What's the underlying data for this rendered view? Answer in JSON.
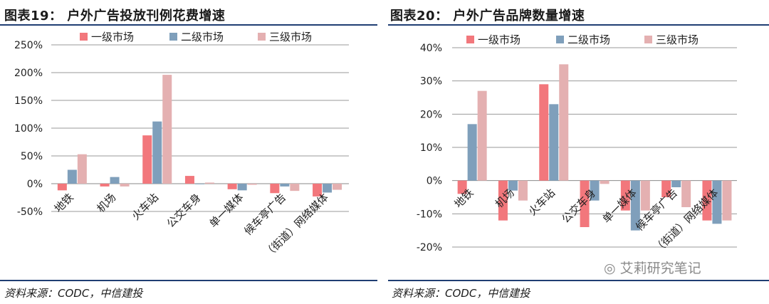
{
  "charts": [
    {
      "title": "图表19：  户外广告投放刊例花费增速",
      "source": "资料来源：CODC，中信建投"
    },
    {
      "title": "图表20：  户外广告品牌数量增速",
      "source": "资料来源：CODC，中信建投"
    }
  ],
  "watermark": "艾莉研究笔记",
  "colors": {
    "series1": "#f2777c",
    "series2": "#7f9fbb",
    "series3": "#e4b0b1",
    "rule": "#1f3e73"
  },
  "chart_data": [
    {
      "type": "bar",
      "title": "户外广告投放刊例花费增速",
      "categories": [
        "地铁",
        "机场",
        "火车站",
        "公交车身",
        "单一媒体",
        "候车亭广告",
        "（街道）网络媒体"
      ],
      "series": [
        {
          "name": "一级市场",
          "values": [
            -12,
            -5,
            87,
            14,
            -10,
            -17,
            -23
          ]
        },
        {
          "name": "二级市场",
          "values": [
            25,
            12,
            112,
            -1,
            -12,
            -5,
            -16
          ]
        },
        {
          "name": "三级市场",
          "values": [
            53,
            -5,
            196,
            2,
            -2,
            -13,
            -11
          ]
        }
      ],
      "ylim": [
        -50,
        250
      ],
      "yticks": [
        -50,
        0,
        50,
        100,
        150,
        200,
        250
      ],
      "ytick_labels": [
        "-50%",
        "0%",
        "50%",
        "100%",
        "150%",
        "200%",
        "250%"
      ],
      "legend": [
        "一级市场",
        "二级市场",
        "三级市场"
      ],
      "grid": true
    },
    {
      "type": "bar",
      "title": "户外广告品牌数量增速",
      "categories": [
        "地铁",
        "机场",
        "火车站",
        "公交车身",
        "单一媒体",
        "候车亭广告",
        "（街道）网络媒体"
      ],
      "series": [
        {
          "name": "一级市场",
          "values": [
            -4,
            -12,
            29,
            -14,
            -9,
            -5,
            -12
          ]
        },
        {
          "name": "二级市场",
          "values": [
            17,
            -3,
            23,
            -6,
            -15,
            -2,
            -13
          ]
        },
        {
          "name": "三级市场",
          "values": [
            27,
            -6,
            35,
            -1,
            -9,
            -8,
            -12
          ]
        }
      ],
      "ylim": [
        -20,
        40
      ],
      "yticks": [
        -20,
        -10,
        0,
        10,
        20,
        30,
        40
      ],
      "ytick_labels": [
        "-20%",
        "-10%",
        "0%",
        "10%",
        "20%",
        "30%",
        "40%"
      ],
      "legend": [
        "一级市场",
        "二级市场",
        "三级市场"
      ],
      "grid": true
    }
  ]
}
